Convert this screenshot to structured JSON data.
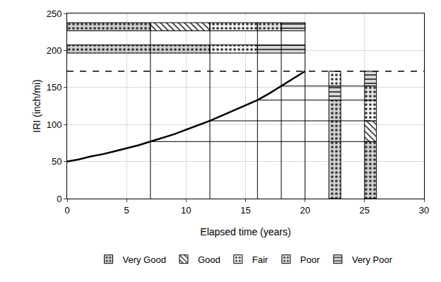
{
  "chart_data": {
    "type": "line",
    "x_label": "Elapsed time (years)",
    "y_label": "IRI (inch/mi)",
    "xlim": [
      0,
      30
    ],
    "xticks": [
      0,
      5,
      10,
      15,
      20,
      25,
      30
    ],
    "ylim": [
      0,
      250
    ],
    "yticks": [
      0,
      50,
      100,
      150,
      200,
      250
    ],
    "grid": true,
    "legend": "bottom",
    "series": [
      {
        "x": [
          0,
          1,
          2,
          3,
          4,
          5,
          6,
          7,
          8,
          9,
          10,
          11,
          12,
          13,
          14,
          15,
          16,
          17,
          18,
          19,
          20
        ],
        "values": [
          50,
          53,
          57,
          60,
          64,
          68,
          72,
          77,
          82,
          87,
          93,
          99,
          105,
          112,
          119,
          126,
          133,
          142,
          152,
          162,
          172
        ],
        "color": "#000000",
        "line_style": "thick"
      },
      {
        "x": [
          0,
          30
        ],
        "values": [
          172,
          172
        ],
        "color": "#000000",
        "line_style": "dash"
      },
      {
        "x": [
          7,
          7
        ],
        "values": [
          0,
          238
        ],
        "color": "#000000",
        "line_style": "solid"
      },
      {
        "x": [
          12,
          12
        ],
        "values": [
          0,
          238
        ],
        "color": "#000000",
        "line_style": "solid"
      },
      {
        "x": [
          16,
          16
        ],
        "values": [
          0,
          238
        ],
        "color": "#000000",
        "line_style": "solid"
      },
      {
        "x": [
          18,
          18
        ],
        "values": [
          0,
          238
        ],
        "color": "#000000",
        "line_style": "solid"
      },
      {
        "x": [
          20,
          20
        ],
        "values": [
          0,
          238
        ],
        "color": "#000000",
        "line_style": "solid"
      },
      {
        "x": [
          7,
          25.5
        ],
        "values": [
          77,
          77
        ],
        "color": "#000000",
        "line_style": "solid"
      },
      {
        "x": [
          12,
          25.5
        ],
        "values": [
          105,
          105
        ],
        "color": "#000000",
        "line_style": "solid"
      },
      {
        "x": [
          16,
          25.5
        ],
        "values": [
          133,
          133
        ],
        "color": "#000000",
        "line_style": "solid"
      },
      {
        "x": [
          18,
          25.5
        ],
        "values": [
          152,
          152
        ],
        "color": "#000000",
        "line_style": "solid"
      }
    ],
    "conditions": [
      {
        "name": "Very Good",
        "color": "#cfcfcf",
        "marker": "dots"
      },
      {
        "name": "Good",
        "color": "#ffffff",
        "marker": "hatch"
      },
      {
        "name": "Fair",
        "color": "#f4f4f4",
        "marker": "dots"
      },
      {
        "name": "Poor",
        "color": "#e2e2e2",
        "marker": "dots"
      },
      {
        "name": "Very Poor",
        "color": "#d8d8d8",
        "marker": "lines"
      }
    ],
    "bands": [
      {
        "y": 232,
        "segments": [
          {
            "condition": "Very Good",
            "start": 0,
            "end": 7
          },
          {
            "condition": "Good",
            "start": 7,
            "end": 12
          },
          {
            "condition": "Fair",
            "start": 12,
            "end": 16
          },
          {
            "condition": "Poor",
            "start": 16,
            "end": 18
          },
          {
            "condition": "Very Poor",
            "start": 18,
            "end": 20
          }
        ]
      },
      {
        "y": 202,
        "segments": [
          {
            "condition": "Very Good",
            "start": 0,
            "end": 12
          },
          {
            "condition": "Fair",
            "start": 12,
            "end": 16
          },
          {
            "condition": "Very Poor",
            "start": 16,
            "end": 20
          }
        ]
      }
    ],
    "columns": [
      {
        "x": 22.5,
        "segments": [
          {
            "condition": "Very Good",
            "start": 0,
            "end": 133
          },
          {
            "condition": "Very Poor",
            "start": 133,
            "end": 152
          },
          {
            "condition": "Fair",
            "start": 152,
            "end": 172
          }
        ]
      },
      {
        "x": 25.5,
        "segments": [
          {
            "condition": "Very Good",
            "start": 0,
            "end": 77
          },
          {
            "condition": "Good",
            "start": 77,
            "end": 105
          },
          {
            "condition": "Fair",
            "start": 105,
            "end": 133
          },
          {
            "condition": "Poor",
            "start": 133,
            "end": 152
          },
          {
            "condition": "Very Poor",
            "start": 152,
            "end": 172
          }
        ]
      }
    ]
  }
}
